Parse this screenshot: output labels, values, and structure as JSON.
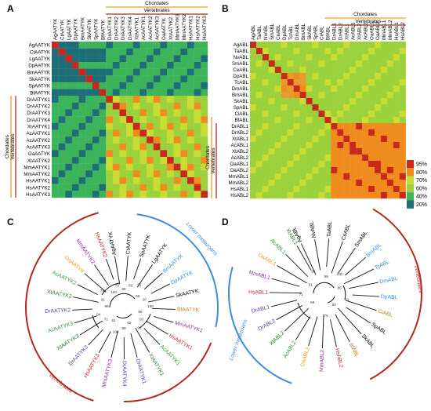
{
  "panels": {
    "A": "A",
    "B": "B",
    "C": "C",
    "D": "D"
  },
  "heatmap_a": {
    "labels": [
      "AgAATYK",
      "CtAATYK",
      "LgAATYK",
      "DpAATYK",
      "BmAATYK",
      "SkAATYK",
      "SpAATYK",
      "BfAATYK",
      "DrAATYK1",
      "DrAATYK2",
      "DrAATYK3",
      "DrAATYK4",
      "XtAATYK1",
      "AcAATYK1",
      "AcAATYK2",
      "AcAATYK3",
      "OaAATYK",
      "XtAATYK2",
      "MmAATYK1",
      "MmAATYK2",
      "HsAATYK1",
      "HsAATYK2",
      "HsAATYK3"
    ],
    "group_outer": "Chordates",
    "group_inner": "Vertebrates"
  },
  "heatmap_b": {
    "labels": [
      "AgABL",
      "TaABL",
      "NvABL",
      "SmABL",
      "CeABL",
      "DpABL",
      "TcABL",
      "DmABL",
      "BmABL",
      "SkABL",
      "SpABL",
      "CiABL",
      "BfABL",
      "DrABL1",
      "DrABL2",
      "XtABL1",
      "AcABL1",
      "XtABL2",
      "AcABL2",
      "OaABL1",
      "OaABL2",
      "MmABL1",
      "MmABL2",
      "HsABL1",
      "HsABL2"
    ],
    "group_outer": "Chordates",
    "group_inner": "Vertebrates"
  },
  "legend": {
    "items": [
      "95%",
      "80%",
      "70%",
      "60%",
      "40%",
      "20%"
    ],
    "colors": [
      "#c8281e",
      "#f08c1e",
      "#c8dc32",
      "#9bd23c",
      "#3cb45a",
      "#1e6e78"
    ]
  },
  "colors": {
    "chordates": "#e8a020",
    "vertebrates": "#b42828",
    "lower": "#3c8cdc",
    "arc_red": "#b4281e"
  },
  "tree_c": {
    "leaves": [
      {
        "name": "AgAATYK",
        "color": "#000000"
      },
      {
        "name": "CtAATYK",
        "color": "#000000"
      },
      {
        "name": "SpAATYK",
        "color": "#000000"
      },
      {
        "name": "LgAATYK",
        "color": "#000000"
      },
      {
        "name": "BmAATYK",
        "color": "#3c8cdc"
      },
      {
        "name": "DpAATYK",
        "color": "#3c8cdc"
      },
      {
        "name": "SkAATYK",
        "color": "#000000"
      },
      {
        "name": "BfAATYK",
        "color": "#c08020"
      },
      {
        "name": "MmAATYK1",
        "color": "#9b2fae"
      },
      {
        "name": "HsAATYK1",
        "color": "#c62828"
      },
      {
        "name": "AcAATYK1",
        "color": "#2e9e3c"
      },
      {
        "name": "XtAATYK1",
        "color": "#2e7d32"
      },
      {
        "name": "DrAATYK1",
        "color": "#5e35b1"
      },
      {
        "name": "DrAATYK4",
        "color": "#5e35b1"
      },
      {
        "name": "MmAATYK3",
        "color": "#9b2fae"
      },
      {
        "name": "HsAATYK3",
        "color": "#c62828"
      },
      {
        "name": "DrAATYK3",
        "color": "#5e35b1"
      },
      {
        "name": "XtAATYK3",
        "color": "#2e7d32"
      },
      {
        "name": "AcAATYK3",
        "color": "#2e9e3c"
      },
      {
        "name": "DrAATYK2",
        "color": "#5e35b1"
      },
      {
        "name": "XtAATYK2",
        "color": "#2e7d32"
      },
      {
        "name": "AcAATYK2",
        "color": "#2e9e3c"
      },
      {
        "name": "OaAATYK",
        "color": "#e8a020"
      },
      {
        "name": "MmAATYK2",
        "color": "#9b2fae"
      },
      {
        "name": "HsAATYK2",
        "color": "#c62828"
      }
    ],
    "arc_lower": "Lower metazoans",
    "arc_vert": "Vertebrates",
    "bootstraps": [
      "98",
      "83",
      "51",
      "66",
      "97",
      "100",
      "99",
      "93",
      "92",
      "82",
      "99",
      "100",
      "61",
      "72",
      "94",
      "99",
      "61",
      "78",
      "100",
      "78"
    ]
  },
  "tree_d": {
    "leaves": [
      {
        "name": "AgABL",
        "color": "#000000"
      },
      {
        "name": "NvABL",
        "color": "#000000"
      },
      {
        "name": "TaABL",
        "color": "#000000"
      },
      {
        "name": "CeABL",
        "color": "#000000"
      },
      {
        "name": "SmABL",
        "color": "#000000"
      },
      {
        "name": "BmABL",
        "color": "#3c8cdc"
      },
      {
        "name": "TcABL",
        "color": "#3c8cdc"
      },
      {
        "name": "DmABL",
        "color": "#3c8cdc"
      },
      {
        "name": "DpABL",
        "color": "#3c8cdc"
      },
      {
        "name": "CiABL",
        "color": "#c08020"
      },
      {
        "name": "SpABL",
        "color": "#000000"
      },
      {
        "name": "SkABL",
        "color": "#000000"
      },
      {
        "name": "BfABL",
        "color": "#c08020"
      },
      {
        "name": "HsABL2",
        "color": "#c62828"
      },
      {
        "name": "MmABL2",
        "color": "#9b2fae"
      },
      {
        "name": "OaABL2",
        "color": "#e8a020"
      },
      {
        "name": "AcABL2",
        "color": "#2e9e3c"
      },
      {
        "name": "XtABL2",
        "color": "#2e7d32"
      },
      {
        "name": "DrABL2",
        "color": "#5e35b1"
      },
      {
        "name": "DrABL1",
        "color": "#5e35b1"
      },
      {
        "name": "HsABL1",
        "color": "#c62828"
      },
      {
        "name": "MmABL1",
        "color": "#9b2fae"
      },
      {
        "name": "OaABL1",
        "color": "#e8a020"
      },
      {
        "name": "AcABL1",
        "color": "#2e9e3c"
      },
      {
        "name": "XtABL1",
        "color": "#2e7d32"
      }
    ],
    "arc_lower": "Lower metazoans",
    "arc_vert": "Vertebrates",
    "bootstraps": [
      "58",
      "71",
      "51",
      "99",
      "99",
      "100",
      "86",
      "93",
      "82",
      "75"
    ]
  }
}
